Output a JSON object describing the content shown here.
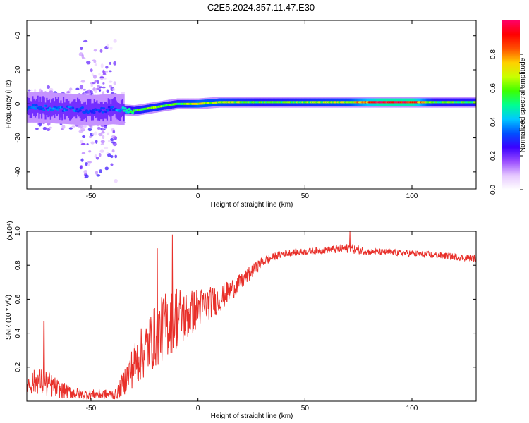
{
  "title": "C2E5.2024.357.11.47.E30",
  "chart_data": [
    {
      "type": "heatmap",
      "xlabel": "Height of straight line (km)",
      "ylabel": "Frequency (Hz)",
      "xlim": [
        -80,
        130
      ],
      "ylim": [
        -50,
        49
      ],
      "xticks": [
        -50,
        0,
        50,
        100
      ],
      "yticks": [
        -40,
        -20,
        0,
        20,
        40
      ],
      "colorbar": {
        "label": "Normalized spectral amplitude",
        "range": [
          0,
          1
        ],
        "ticks": [
          "0.0",
          "0.2",
          "0.4",
          "0.6",
          "0.8"
        ],
        "colormap": [
          "#ffffff",
          "#e6c8ff",
          "#9a4dff",
          "#3a00ff",
          "#0050ff",
          "#00c8ff",
          "#00ff90",
          "#3cff00",
          "#c8ff00",
          "#ffd000",
          "#ff5000",
          "#ff0000",
          "#ff0066"
        ]
      },
      "ridge": {
        "description_points": [
          {
            "x": -75,
            "freq": -2,
            "amp": 0.35
          },
          {
            "x": -60,
            "freq": -3,
            "amp": 0.35
          },
          {
            "x": -50,
            "freq": -4,
            "amp": 0.3
          },
          {
            "x": -40,
            "freq": -3,
            "amp": 0.3
          },
          {
            "x": -30,
            "freq": -4,
            "amp": 0.55
          },
          {
            "x": -20,
            "freq": -2,
            "amp": 0.6
          },
          {
            "x": -10,
            "freq": 0,
            "amp": 0.55
          },
          {
            "x": 0,
            "freq": 0,
            "amp": 0.7
          },
          {
            "x": 10,
            "freq": 1,
            "amp": 0.65
          },
          {
            "x": 30,
            "freq": 1,
            "amp": 0.55
          },
          {
            "x": 50,
            "freq": 1,
            "amp": 0.6
          },
          {
            "x": 70,
            "freq": 1,
            "amp": 0.65
          },
          {
            "x": 85,
            "freq": 1,
            "amp": 0.95
          },
          {
            "x": 100,
            "freq": 1,
            "amp": 0.95
          },
          {
            "x": 110,
            "freq": 1,
            "amp": 0.55
          },
          {
            "x": 130,
            "freq": 1,
            "amp": 0.55
          }
        ]
      }
    },
    {
      "type": "line",
      "xlabel": "Height of straight line (km)",
      "ylabel": "SNR (10 * v/v)",
      "y_multiplier": "(x10⁴)",
      "xlim": [
        -80,
        130
      ],
      "ylim": [
        0,
        1.0
      ],
      "xticks": [
        -50,
        0,
        50,
        100
      ],
      "yticks": [
        "0.2",
        "0.4",
        "0.6",
        "0.8",
        "1.0"
      ],
      "series": [
        {
          "color": "#e8302a",
          "envelope": [
            {
              "x": -80,
              "mean": 0.1,
              "spread": 0.06
            },
            {
              "x": -75,
              "mean": 0.12,
              "spread": 0.08
            },
            {
              "x": -70,
              "mean": 0.1,
              "spread": 0.08
            },
            {
              "x": -65,
              "mean": 0.07,
              "spread": 0.05
            },
            {
              "x": -55,
              "mean": 0.04,
              "spread": 0.03
            },
            {
              "x": -45,
              "mean": 0.04,
              "spread": 0.03
            },
            {
              "x": -38,
              "mean": 0.04,
              "spread": 0.03
            },
            {
              "x": -33,
              "mean": 0.15,
              "spread": 0.1
            },
            {
              "x": -28,
              "mean": 0.25,
              "spread": 0.15
            },
            {
              "x": -22,
              "mean": 0.35,
              "spread": 0.18
            },
            {
              "x": -15,
              "mean": 0.45,
              "spread": 0.2
            },
            {
              "x": -10,
              "mean": 0.5,
              "spread": 0.2
            },
            {
              "x": -5,
              "mean": 0.5,
              "spread": 0.15
            },
            {
              "x": 0,
              "mean": 0.55,
              "spread": 0.12
            },
            {
              "x": 10,
              "mean": 0.6,
              "spread": 0.08
            },
            {
              "x": 20,
              "mean": 0.7,
              "spread": 0.05
            },
            {
              "x": 30,
              "mean": 0.82,
              "spread": 0.03
            },
            {
              "x": 40,
              "mean": 0.87,
              "spread": 0.02
            },
            {
              "x": 60,
              "mean": 0.89,
              "spread": 0.02
            },
            {
              "x": 70,
              "mean": 0.9,
              "spread": 0.03
            },
            {
              "x": 80,
              "mean": 0.88,
              "spread": 0.02
            },
            {
              "x": 100,
              "mean": 0.87,
              "spread": 0.02
            },
            {
              "x": 110,
              "mean": 0.86,
              "spread": 0.02
            },
            {
              "x": 120,
              "mean": 0.85,
              "spread": 0.02
            },
            {
              "x": 130,
              "mean": 0.84,
              "spread": 0.02
            }
          ],
          "peaks": [
            {
              "x": -72,
              "y": 0.47
            },
            {
              "x": -12,
              "y": 0.98
            },
            {
              "x": -19,
              "y": 0.9
            },
            {
              "x": 71,
              "y": 1.0
            }
          ]
        }
      ]
    }
  ]
}
